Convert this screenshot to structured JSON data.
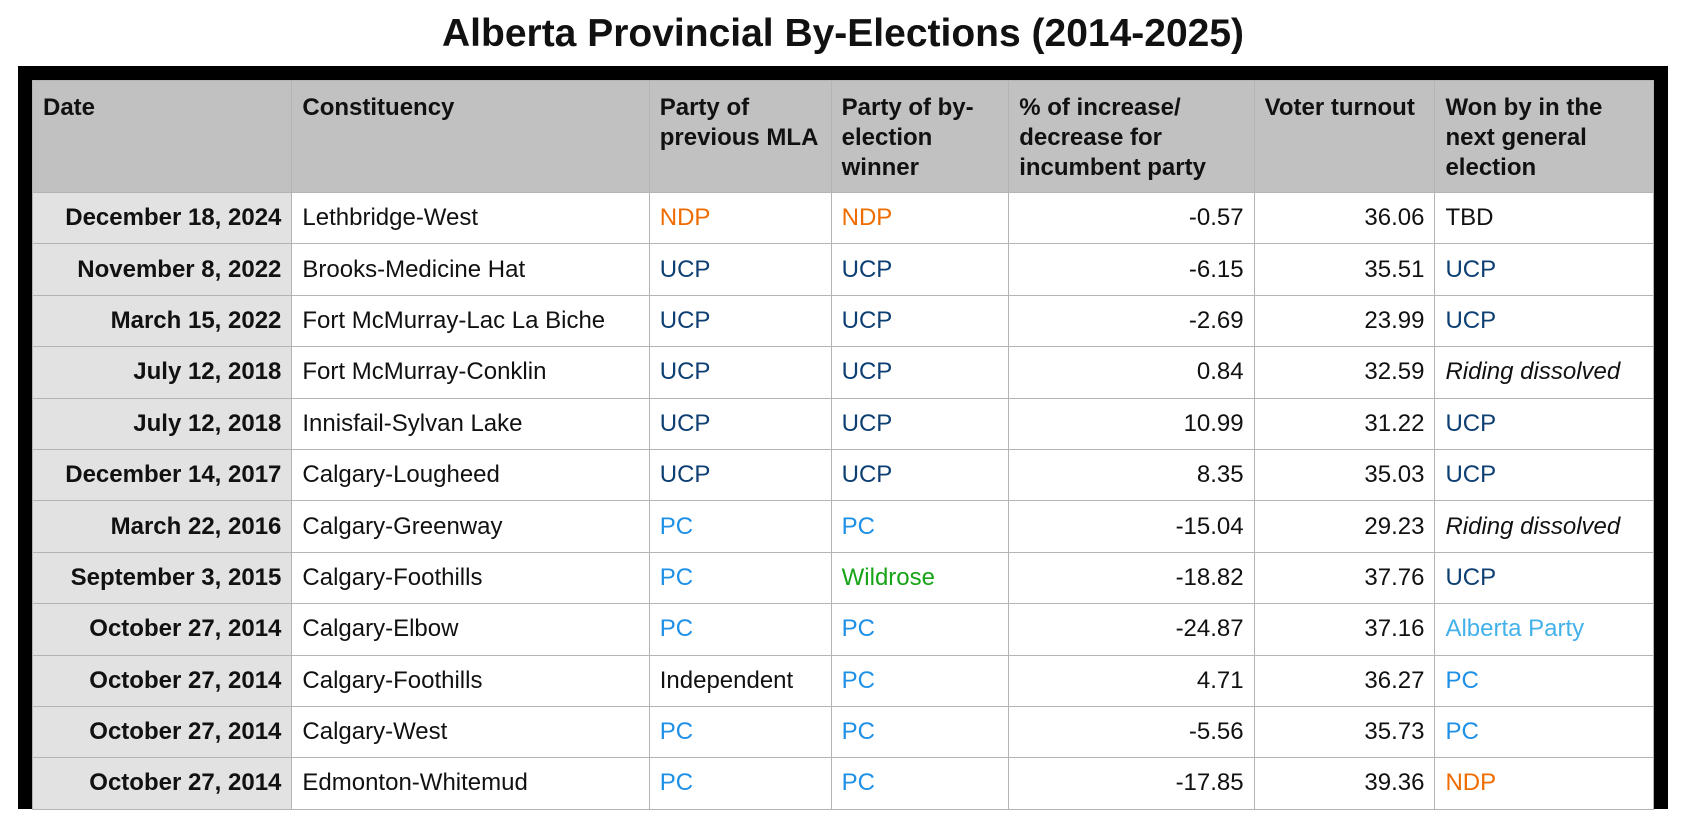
{
  "title": "Alberta Provincial By-Elections (2014-2025)",
  "colors": {
    "NDP": "#ef6c00",
    "UCP": "#0d3f73",
    "PC": "#1e90e6",
    "Wildrose": "#17a417",
    "Alberta Party": "#43b1ea",
    "Independent": "#111111",
    "default": "#111111"
  },
  "columns": [
    "Date",
    "Constituency",
    "Party of previous MLA",
    "Party of by-election winner",
    "% of increase/ decrease for incumbent party",
    "Voter turnout",
    "Won by in the next general election"
  ],
  "rows": [
    {
      "date": "December 18, 2024",
      "constituency": "Lethbridge-West",
      "prev": "NDP",
      "winner": "NDP",
      "change": "-0.57",
      "turnout": "36.06",
      "next": "TBD"
    },
    {
      "date": "November 8, 2022",
      "constituency": "Brooks-Medicine Hat",
      "prev": "UCP",
      "winner": "UCP",
      "change": "-6.15",
      "turnout": "35.51",
      "next": "UCP"
    },
    {
      "date": "March 15, 2022",
      "constituency": "Fort McMurray-Lac La Biche",
      "prev": "UCP",
      "winner": "UCP",
      "change": "-2.69",
      "turnout": "23.99",
      "next": "UCP"
    },
    {
      "date": "July 12, 2018",
      "constituency": "Fort McMurray-Conklin",
      "prev": "UCP",
      "winner": "UCP",
      "change": "0.84",
      "turnout": "32.59",
      "next": "Riding dissolved"
    },
    {
      "date": "July 12, 2018",
      "constituency": "Innisfail-Sylvan Lake",
      "prev": "UCP",
      "winner": "UCP",
      "change": "10.99",
      "turnout": "31.22",
      "next": "UCP"
    },
    {
      "date": "December 14, 2017",
      "constituency": "Calgary-Lougheed",
      "prev": "UCP",
      "winner": "UCP",
      "change": "8.35",
      "turnout": "35.03",
      "next": "UCP"
    },
    {
      "date": "March 22, 2016",
      "constituency": "Calgary-Greenway",
      "prev": "PC",
      "winner": "PC",
      "change": "-15.04",
      "turnout": "29.23",
      "next": "Riding dissolved"
    },
    {
      "date": "September 3, 2015",
      "constituency": "Calgary-Foothills",
      "prev": "PC",
      "winner": "Wildrose",
      "change": "-18.82",
      "turnout": "37.76",
      "next": "UCP"
    },
    {
      "date": "October 27, 2014",
      "constituency": "Calgary-Elbow",
      "prev": "PC",
      "winner": "PC",
      "change": "-24.87",
      "turnout": "37.16",
      "next": "Alberta Party"
    },
    {
      "date": "October 27, 2014",
      "constituency": "Calgary-Foothills",
      "prev": "Independent",
      "winner": "PC",
      "change": "4.71",
      "turnout": "36.27",
      "next": "PC"
    },
    {
      "date": "October 27, 2014",
      "constituency": "Calgary-West",
      "prev": "PC",
      "winner": "PC",
      "change": "-5.56",
      "turnout": "35.73",
      "next": "PC"
    },
    {
      "date": "October 27, 2014",
      "constituency": "Edmonton-Whitemud",
      "prev": "PC",
      "winner": "PC",
      "change": "-17.85",
      "turnout": "39.36",
      "next": "NDP"
    }
  ]
}
